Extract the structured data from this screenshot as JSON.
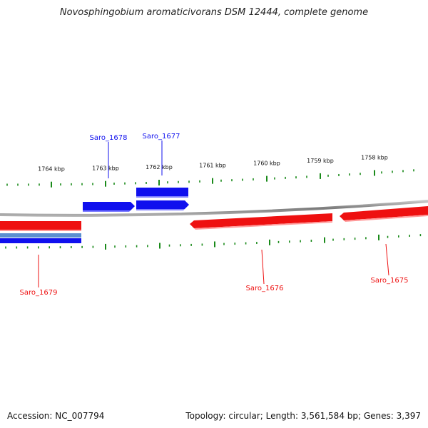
{
  "title": "Novosphingobium aromaticivorans DSM 12444, complete genome",
  "footer": {
    "accession": "Accession: NC_007794",
    "summary": "Topology: circular; Length: 3,561,584 bp; Genes: 3,397"
  },
  "colors": {
    "forward_gene": "#1010ee",
    "reverse_gene": "#ee1010",
    "tick": "#1a8a1a",
    "backbone": "#8a8a8a"
  },
  "scale_labels": [
    "1764 kbp",
    "1763 kbp",
    "1762 kbp",
    "1761 kbp",
    "1760 kbp",
    "1759 kbp",
    "1758 kbp"
  ],
  "genes": [
    {
      "name": "Saro_1679",
      "strand": "reverse"
    },
    {
      "name": "Saro_1678",
      "strand": "forward"
    },
    {
      "name": "Saro_1677",
      "strand": "forward"
    },
    {
      "name": "Saro_1676",
      "strand": "reverse"
    },
    {
      "name": "Saro_1675",
      "strand": "reverse"
    }
  ]
}
